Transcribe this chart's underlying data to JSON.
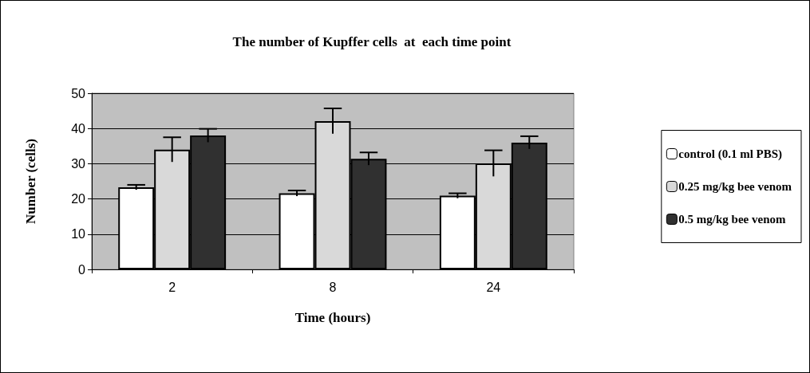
{
  "chart_data": {
    "type": "bar",
    "title": "The number of Kupffer cells  at  each time point",
    "xlabel": "Time (hours)",
    "ylabel": "Number (cells)",
    "categories": [
      "2",
      "8",
      "24"
    ],
    "series": [
      {
        "name": "control (0.1 ml PBS)",
        "color": "#ffffff",
        "values": [
          23.3,
          21.6,
          20.9
        ],
        "errors": [
          0.7,
          0.8,
          0.7
        ]
      },
      {
        "name": "0.25 mg/kg bee venom",
        "color": "#d9d9d9",
        "values": [
          34.0,
          42.1,
          30.1
        ],
        "errors": [
          3.5,
          3.6,
          3.7
        ]
      },
      {
        "name": "0.5 mg/kg bee venom",
        "color": "#303030",
        "values": [
          38.0,
          31.4,
          36.0
        ],
        "errors": [
          1.9,
          1.8,
          1.8
        ]
      }
    ],
    "ylim": [
      0,
      50
    ],
    "yticks": [
      0,
      10,
      20,
      30,
      40,
      50
    ],
    "grid": "y",
    "legend": "right"
  }
}
